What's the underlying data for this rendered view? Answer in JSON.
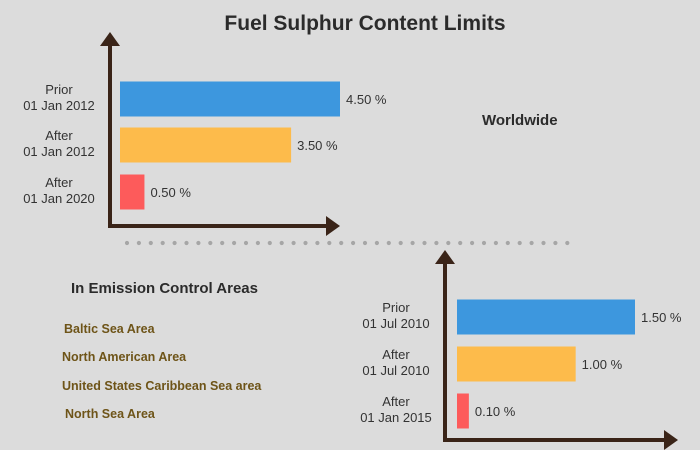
{
  "title": "Fuel Sulphur Content Limits",
  "worldwide_label": "Worldwide",
  "eca": {
    "heading": "In Emission Control Areas",
    "areas": [
      "Baltic Sea Area",
      "North American Area",
      "United States Caribbean Sea area",
      "North Sea Area"
    ]
  },
  "colors": {
    "prior": "#3d97de",
    "after": "#fdbb4b",
    "latest": "#fd5b5b",
    "axis": "#3a2418",
    "dots": "#a6a6a6",
    "area_text": "#6e5418"
  },
  "chart_data": [
    {
      "type": "bar",
      "orientation": "horizontal",
      "title": "",
      "categories": [
        [
          "Prior",
          "01 Jan 2012"
        ],
        [
          "After",
          "01 Jan 2012"
        ],
        [
          "After",
          "01 Jan 2020"
        ]
      ],
      "values": [
        4.5,
        3.5,
        0.5
      ],
      "value_labels": [
        "4.50 %",
        "3.50 %",
        "0.50 %"
      ],
      "unit": "%",
      "xlim": [
        0,
        4.5
      ],
      "grid": false
    },
    {
      "type": "bar",
      "orientation": "horizontal",
      "title": "",
      "categories": [
        [
          "Prior",
          "01 Jul 2010"
        ],
        [
          "After",
          "01 Jul 2010"
        ],
        [
          "After",
          "01 Jan 2015"
        ]
      ],
      "values": [
        1.5,
        1.0,
        0.1
      ],
      "value_labels": [
        "1.50 %",
        "1.00 %",
        "0.10 %"
      ],
      "unit": "%",
      "xlim": [
        0,
        1.5
      ],
      "grid": false
    }
  ]
}
